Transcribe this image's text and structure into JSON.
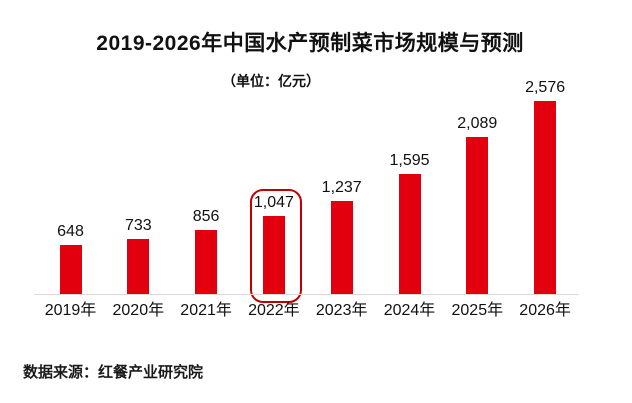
{
  "chart_data": {
    "type": "bar",
    "title": "2019-2026年中国水产预制菜市场规模与预测",
    "unit_label": "（单位：亿元）",
    "categories": [
      "2019年",
      "2020年",
      "2021年",
      "2022年",
      "2023年",
      "2024年",
      "2025年",
      "2026年"
    ],
    "values": [
      648,
      733,
      856,
      1047,
      1237,
      1595,
      2089,
      2576
    ],
    "value_labels": [
      "648",
      "733",
      "856",
      "1,047",
      "1,237",
      "1,595",
      "2,089",
      "2,576"
    ],
    "highlighted_index": 3,
    "highlighted_category": "2022年",
    "ylim": [
      0,
      2576
    ],
    "legend": "none",
    "grid": "off",
    "bar_color": "#E2000F",
    "highlight_border_color": "#C00000",
    "axis_line_color": "#D9D9D9",
    "text_color": "#111111",
    "source": "数据来源：红餐产业研究院"
  }
}
